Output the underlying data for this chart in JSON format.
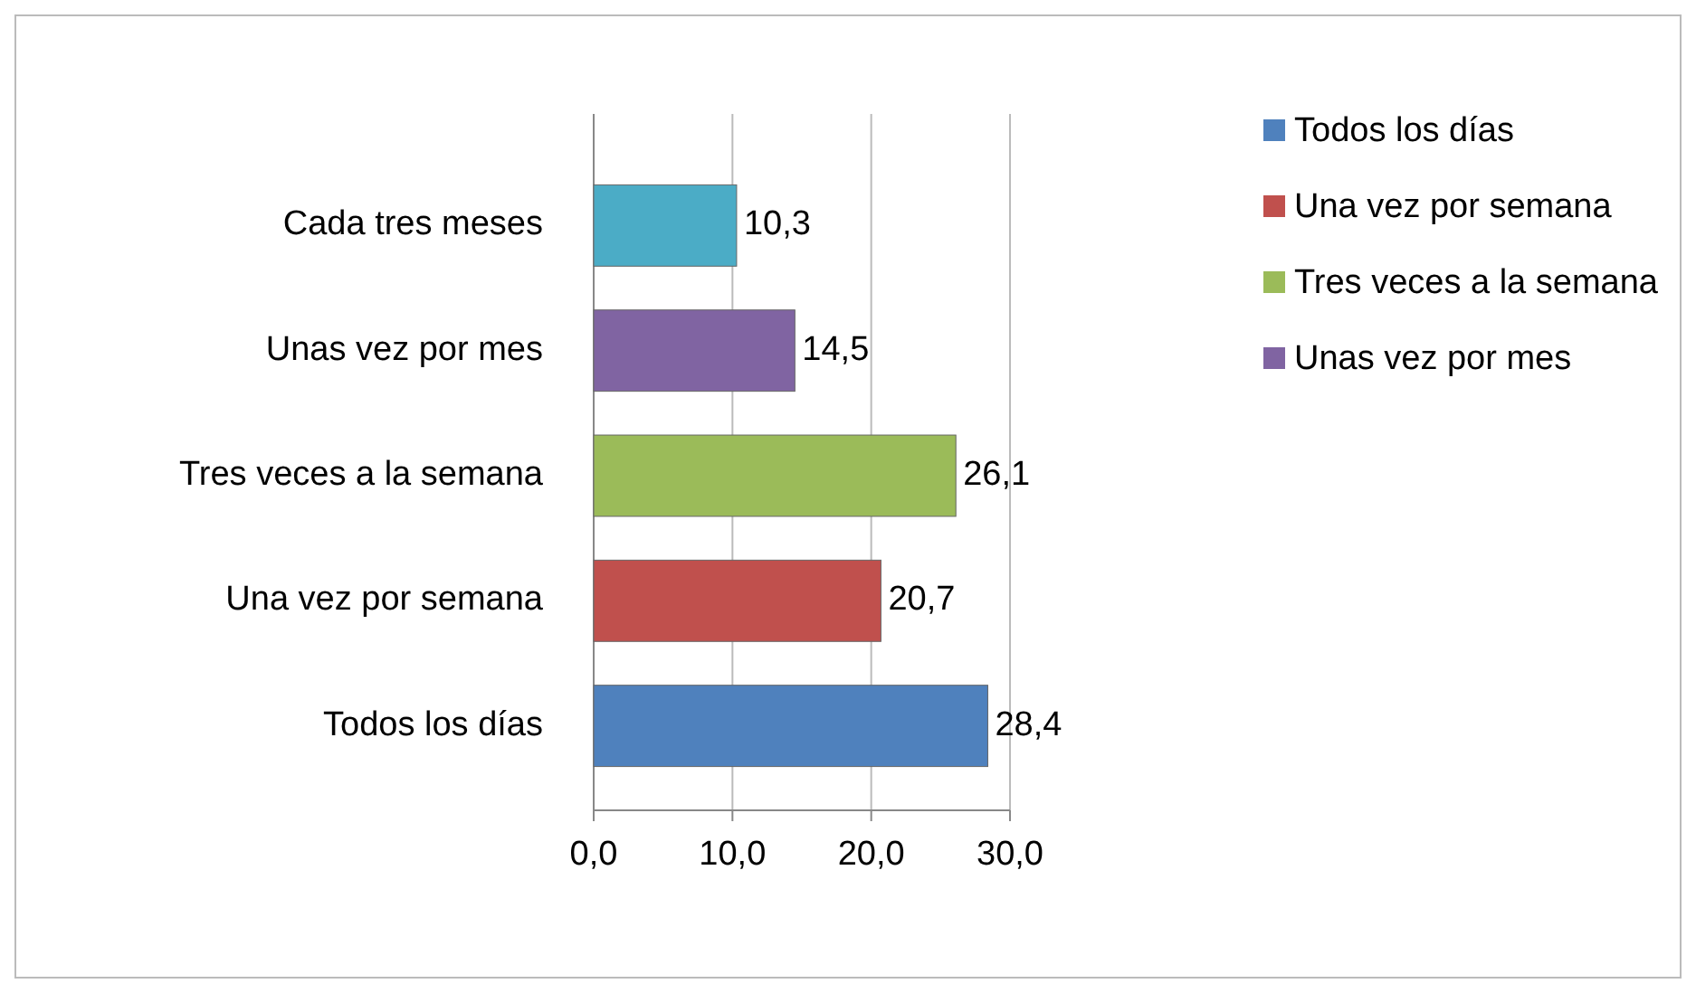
{
  "chart_data": {
    "type": "bar",
    "orientation": "horizontal",
    "categories": [
      "Cada tres meses",
      "Unas vez por mes",
      "Tres veces a la semana",
      "Una vez por semana",
      "Todos los días"
    ],
    "series": [
      {
        "name": "Todos los días",
        "color": "#4f81bd",
        "values": [
          null,
          null,
          null,
          null,
          28.4
        ],
        "value_labels": [
          null,
          null,
          null,
          null,
          "28,4"
        ]
      },
      {
        "name": "Una vez por semana",
        "color": "#c0504d",
        "values": [
          null,
          null,
          null,
          20.7,
          null
        ],
        "value_labels": [
          null,
          null,
          null,
          "20,7",
          null
        ]
      },
      {
        "name": "Tres veces a la semana",
        "color": "#9bbb59",
        "values": [
          null,
          null,
          26.1,
          null,
          null
        ],
        "value_labels": [
          null,
          null,
          "26,1",
          null,
          null
        ]
      },
      {
        "name": "Unas vez por mes",
        "color": "#8064a2",
        "values": [
          null,
          14.5,
          null,
          null,
          null
        ],
        "value_labels": [
          null,
          "14,5",
          null,
          null,
          null
        ]
      },
      {
        "color": "#4bacc6",
        "values": [
          10.3,
          null,
          null,
          null,
          null
        ],
        "value_labels": [
          "10,3",
          null,
          null,
          null,
          null
        ]
      }
    ],
    "xlim": [
      0,
      30
    ],
    "xticks": [
      {
        "value": 0,
        "label": "0,0"
      },
      {
        "value": 10,
        "label": "10,0"
      },
      {
        "value": 20,
        "label": "20,0"
      },
      {
        "value": 30,
        "label": "30,0"
      }
    ],
    "grid": "x",
    "legend": "right"
  }
}
